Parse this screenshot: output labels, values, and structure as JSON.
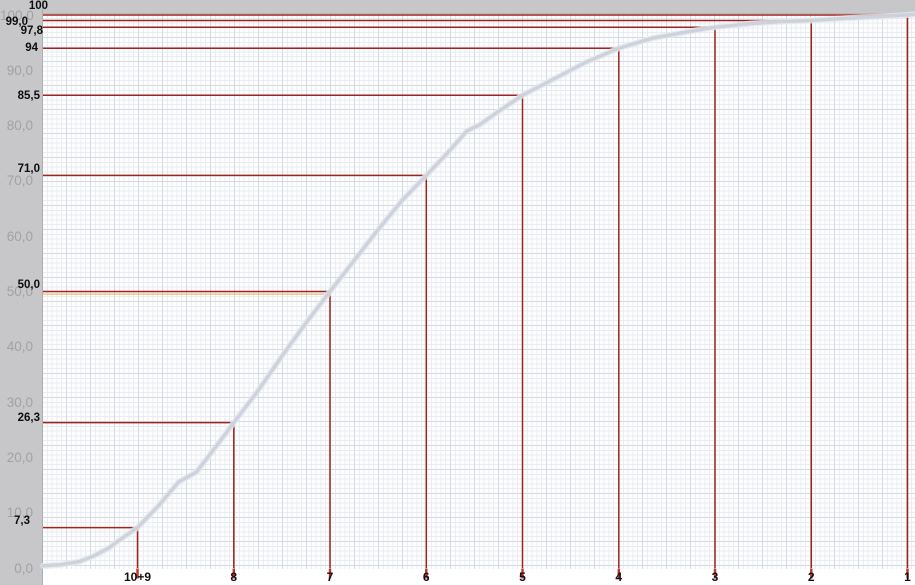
{
  "chart_data": {
    "type": "line",
    "title": "",
    "x_axis": {
      "categories": [
        "10+9",
        "8",
        "7",
        "6",
        "5",
        "4",
        "3",
        "2",
        "1"
      ],
      "direction": "descending-left-to-right"
    },
    "y_axis": {
      "range": [
        0,
        100
      ],
      "ticks": [
        {
          "value": 100,
          "label": "100,0"
        },
        {
          "value": 90,
          "label": "90,0"
        },
        {
          "value": 80,
          "label": "80,0"
        },
        {
          "value": 70,
          "label": "70,0"
        },
        {
          "value": 60,
          "label": "60,0"
        },
        {
          "value": 50,
          "label": "50,0"
        },
        {
          "value": 40,
          "label": "40,0"
        },
        {
          "value": 30,
          "label": "30,0"
        },
        {
          "value": 20,
          "label": "20,0"
        },
        {
          "value": 10,
          "label": "10,0"
        },
        {
          "value": 0,
          "label": "0,0"
        }
      ]
    },
    "annotations": [
      {
        "x": "10+9",
        "value": 7.3,
        "label": "7,3"
      },
      {
        "x": "8",
        "value": 26.3,
        "label": "26,3"
      },
      {
        "x": "7",
        "value": 50.0,
        "label": "50,0"
      },
      {
        "x": "6",
        "value": 71.0,
        "label": "71,0"
      },
      {
        "x": "5",
        "value": 85.5,
        "label": "85,5"
      },
      {
        "x": "4",
        "value": 94,
        "label": "94"
      },
      {
        "x": "3",
        "value": 97.8,
        "label": "97,8"
      },
      {
        "x": "2",
        "value": 99.0,
        "label": "99,0"
      },
      {
        "x": "1",
        "value": 100,
        "label": "100"
      }
    ],
    "median_marker": {
      "value": 50,
      "color": "#dfb566"
    },
    "series": [
      {
        "name": "cumulative-passing-curve",
        "x_unit": "category-index (0 = 10+9 ... 8 = 1, fractional = between ticks)",
        "points": [
          [
            -0.98,
            0.4
          ],
          [
            -0.8,
            0.6
          ],
          [
            -0.6,
            1.2
          ],
          [
            -0.45,
            2.2
          ],
          [
            -0.3,
            3.6
          ],
          [
            -0.2,
            4.9
          ],
          [
            0,
            7.3
          ],
          [
            0.22,
            11.3
          ],
          [
            0.43,
            15.6
          ],
          [
            0.61,
            17.3
          ],
          [
            0.8,
            21.6
          ],
          [
            1,
            26.3
          ],
          [
            1.25,
            32.0
          ],
          [
            1.5,
            38.3
          ],
          [
            1.75,
            44.3
          ],
          [
            2,
            50.0
          ],
          [
            2.25,
            55.6
          ],
          [
            2.5,
            61.2
          ],
          [
            2.75,
            66.5
          ],
          [
            3,
            71.0
          ],
          [
            3.25,
            75.6
          ],
          [
            3.42,
            79.0
          ],
          [
            3.56,
            80.2
          ],
          [
            3.72,
            82.2
          ],
          [
            4,
            85.5
          ],
          [
            4.3,
            88.2
          ],
          [
            4.65,
            91.4
          ],
          [
            5,
            94.0
          ],
          [
            5.35,
            95.8
          ],
          [
            5.7,
            96.9
          ],
          [
            6,
            97.8
          ],
          [
            6.35,
            98.4
          ],
          [
            6.7,
            98.8
          ],
          [
            7,
            99.0
          ],
          [
            7.35,
            99.4
          ],
          [
            7.7,
            99.7
          ],
          [
            8,
            100.0
          ],
          [
            8.08,
            100.1
          ]
        ]
      }
    ],
    "legend": {
      "visible": false
    },
    "grid": {
      "minor": true,
      "major": true
    },
    "colors": {
      "annotation_line": "#9e241e",
      "axis_tick": "#c5302a",
      "curve": "#cbd1da",
      "grid_minor": "#e9edf2",
      "grid_major": "#d3dae1",
      "axis_label_text": "#a2a2a6",
      "annotation_text": "#0d0d0d",
      "frame_band": "#c7c7c9",
      "plot_background": "#fdfdfe",
      "median_underline": "#dfb566"
    }
  }
}
